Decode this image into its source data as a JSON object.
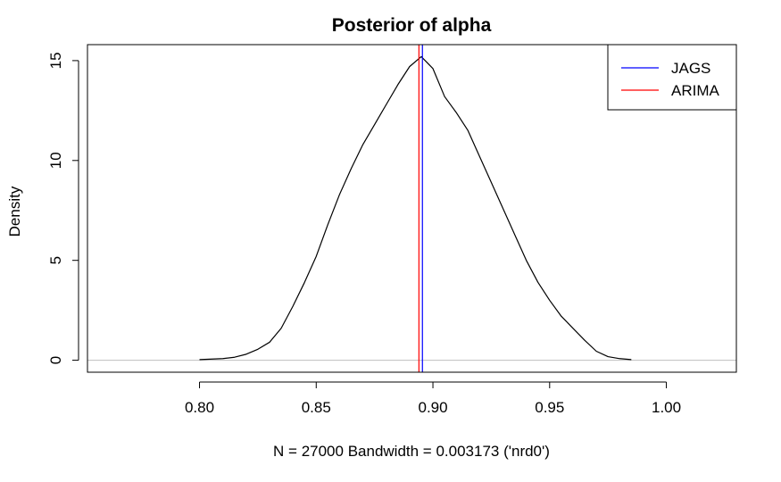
{
  "chart_data": {
    "type": "line",
    "title": "Posterior of alpha",
    "xlabel": "N = 27000   Bandwidth = 0.003173 ('nrd0')",
    "ylabel": "Density",
    "xlim": [
      0.752,
      1.03
    ],
    "ylim": [
      -0.6,
      15.8
    ],
    "x_ticks": [
      0.8,
      0.85,
      0.9,
      0.95,
      1.0
    ],
    "x_tick_labels": [
      "0.80",
      "0.85",
      "0.90",
      "0.95",
      "1.00"
    ],
    "y_ticks": [
      0,
      5,
      10,
      15
    ],
    "y_tick_labels": [
      "0",
      "5",
      "10",
      "15"
    ],
    "grid": false,
    "legend": {
      "position": "top-right",
      "entries": [
        {
          "label": "JAGS",
          "color": "#0000ff"
        },
        {
          "label": "ARIMA",
          "color": "#ff0000"
        }
      ]
    },
    "series": [
      {
        "color": "#000000",
        "points": [
          [
            0.8,
            0.03
          ],
          [
            0.81,
            0.08
          ],
          [
            0.815,
            0.15
          ],
          [
            0.82,
            0.3
          ],
          [
            0.825,
            0.55
          ],
          [
            0.83,
            0.9
          ],
          [
            0.835,
            1.6
          ],
          [
            0.84,
            2.7
          ],
          [
            0.845,
            3.9
          ],
          [
            0.85,
            5.2
          ],
          [
            0.855,
            6.8
          ],
          [
            0.86,
            8.3
          ],
          [
            0.865,
            9.6
          ],
          [
            0.87,
            10.8
          ],
          [
            0.875,
            11.8
          ],
          [
            0.88,
            12.8
          ],
          [
            0.885,
            13.8
          ],
          [
            0.89,
            14.7
          ],
          [
            0.895,
            15.2
          ],
          [
            0.9,
            14.6
          ],
          [
            0.905,
            13.2
          ],
          [
            0.91,
            12.4
          ],
          [
            0.915,
            11.5
          ],
          [
            0.92,
            10.2
          ],
          [
            0.925,
            8.9
          ],
          [
            0.93,
            7.6
          ],
          [
            0.935,
            6.3
          ],
          [
            0.94,
            5.0
          ],
          [
            0.945,
            3.9
          ],
          [
            0.95,
            3.0
          ],
          [
            0.955,
            2.2
          ],
          [
            0.96,
            1.6
          ],
          [
            0.965,
            1.0
          ],
          [
            0.97,
            0.45
          ],
          [
            0.975,
            0.18
          ],
          [
            0.98,
            0.08
          ],
          [
            0.985,
            0.03
          ]
        ]
      }
    ],
    "vlines": [
      {
        "legend": "JAGS",
        "x": 0.8955,
        "color": "#0000ff"
      },
      {
        "legend": "ARIMA",
        "x": 0.894,
        "color": "#ff0000"
      }
    ],
    "hline": {
      "y": 0,
      "color": "#bfbfbf"
    }
  }
}
